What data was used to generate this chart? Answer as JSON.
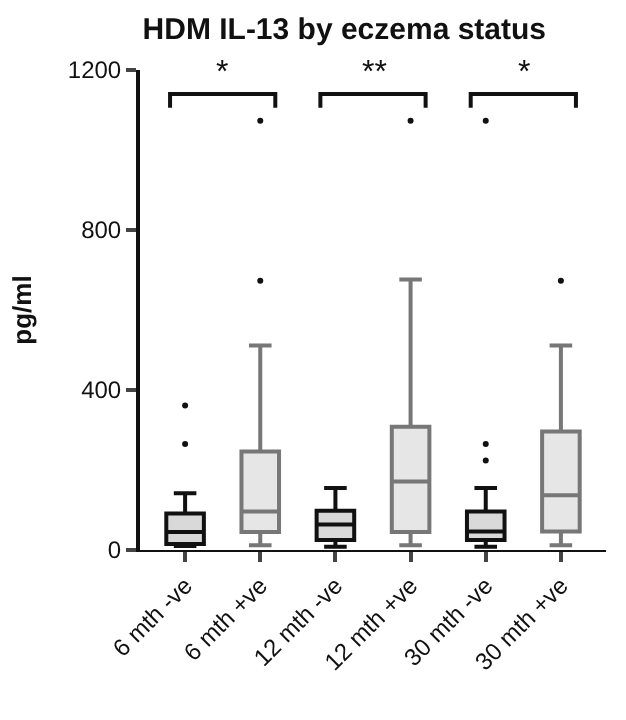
{
  "chart_data": {
    "type": "box",
    "title": "HDM IL-13 by eczema status",
    "ylabel": "pg/ml",
    "categories": [
      "6 mth -ve",
      "6 mth +ve",
      "12 mth -ve",
      "12 mth +ve",
      "30 mth -ve",
      "30 mth +ve"
    ],
    "boxes": [
      {
        "low": 10,
        "q1": 15,
        "median": 45,
        "q3": 91,
        "high": 142,
        "outliers": [
          265,
          361
        ]
      },
      {
        "low": 12,
        "q1": 45,
        "median": 96,
        "q3": 246,
        "high": 511,
        "outliers": [
          673,
          1073
        ]
      },
      {
        "low": 8,
        "q1": 25,
        "median": 64,
        "q3": 98,
        "high": 155
      },
      {
        "low": 12,
        "q1": 45,
        "median": 171,
        "q3": 308,
        "high": 676,
        "outliers": [
          1073
        ]
      },
      {
        "low": 8,
        "q1": 25,
        "median": 46,
        "q3": 96,
        "high": 155,
        "outliers": [
          224,
          265,
          1073
        ]
      },
      {
        "low": 12,
        "q1": 46,
        "median": 137,
        "q3": 296,
        "high": 511,
        "outliers": [
          673
        ]
      }
    ],
    "colors": [
      "#111111",
      "#777777",
      "#111111",
      "#777777",
      "#111111",
      "#777777"
    ],
    "ylim": [
      0,
      1200
    ],
    "yticks": [
      0,
      400,
      800,
      1200
    ],
    "annotations": [
      "*",
      "**",
      "*"
    ],
    "legend": false
  }
}
